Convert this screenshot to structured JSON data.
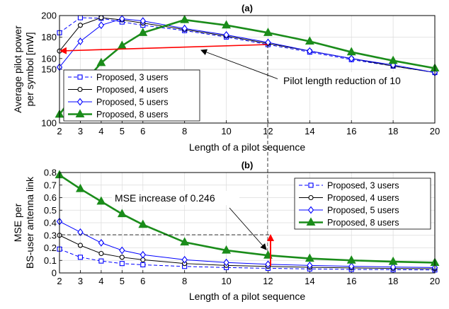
{
  "chart_data": [
    {
      "type": "line",
      "title": "(a)",
      "xlabel": "Length of a pilot sequence",
      "ylabel_lines": [
        "Average pilot power",
        "per symbol [mW]"
      ],
      "xlim": [
        2,
        20
      ],
      "ylim": [
        100,
        200
      ],
      "grid": true,
      "legend_position": "bottom-left",
      "x_ticks": [
        2,
        3,
        4,
        5,
        6,
        8,
        10,
        12,
        14,
        16,
        18,
        20
      ],
      "y_ticks": [
        100,
        150,
        160,
        180,
        200
      ],
      "series": [
        {
          "name": "Proposed, 3 users",
          "color": "#0000ff",
          "marker": "square",
          "dash": true,
          "width": 1,
          "x": [
            2,
            3,
            4,
            5,
            6,
            8,
            10,
            12,
            14,
            16,
            18,
            20
          ],
          "y": [
            184,
            198,
            197.5,
            194,
            191,
            186,
            180,
            173,
            166,
            159,
            153,
            147
          ]
        },
        {
          "name": "Proposed, 4 users",
          "color": "#000000",
          "marker": "circle",
          "dash": false,
          "width": 1,
          "x": [
            2,
            3,
            4,
            5,
            6,
            8,
            10,
            12,
            14,
            16,
            18,
            20
          ],
          "y": [
            167,
            191,
            198,
            196,
            193,
            187,
            181,
            174,
            167,
            160,
            153,
            147
          ]
        },
        {
          "name": "Proposed, 5 users",
          "color": "#0000ff",
          "marker": "diamond",
          "dash": false,
          "width": 1,
          "x": [
            2,
            3,
            4,
            5,
            6,
            8,
            10,
            12,
            14,
            16,
            18,
            20
          ],
          "y": [
            152,
            176,
            191,
            197,
            195,
            188,
            182,
            175,
            167,
            160,
            154,
            147
          ]
        },
        {
          "name": "Proposed, 8 users",
          "color": "#1a8c1a",
          "marker": "triangle",
          "dash": false,
          "width": 2.6,
          "x": [
            2,
            3,
            4,
            5,
            6,
            8,
            10,
            12,
            14,
            16,
            18,
            20
          ],
          "y": [
            108,
            134,
            156,
            172,
            184,
            196,
            191,
            184,
            176,
            166,
            158,
            151
          ]
        }
      ],
      "annotations": [
        {
          "text": "Pilot length reduction of 10"
        }
      ]
    },
    {
      "type": "line",
      "title": "(b)",
      "xlabel": "Length of a pilot sequence",
      "ylabel_lines": [
        "MSE per",
        "BS-user antenna link"
      ],
      "xlim": [
        2,
        20
      ],
      "ylim": [
        0,
        0.8
      ],
      "grid": true,
      "legend_position": "top-right",
      "x_ticks": [
        2,
        3,
        4,
        5,
        6,
        8,
        10,
        12,
        14,
        16,
        18,
        20
      ],
      "y_ticks": [
        0,
        0.1,
        0.2,
        0.3,
        0.4,
        0.5,
        0.6,
        0.7,
        0.8
      ],
      "series": [
        {
          "name": "Proposed, 3 users",
          "color": "#0000ff",
          "marker": "square",
          "dash": true,
          "width": 1,
          "x": [
            2,
            3,
            4,
            5,
            6,
            8,
            10,
            12,
            14,
            16,
            18,
            20
          ],
          "y": [
            0.19,
            0.125,
            0.095,
            0.075,
            0.065,
            0.052,
            0.043,
            0.037,
            0.032,
            0.028,
            0.026,
            0.024
          ]
        },
        {
          "name": "Proposed, 4 users",
          "color": "#000000",
          "marker": "circle",
          "dash": false,
          "width": 1,
          "x": [
            2,
            3,
            4,
            5,
            6,
            8,
            10,
            12,
            14,
            16,
            18,
            20
          ],
          "y": [
            0.3,
            0.22,
            0.155,
            0.125,
            0.105,
            0.075,
            0.06,
            0.052,
            0.045,
            0.04,
            0.036,
            0.033
          ]
        },
        {
          "name": "Proposed, 5 users",
          "color": "#0000ff",
          "marker": "diamond",
          "dash": false,
          "width": 1,
          "x": [
            2,
            3,
            4,
            5,
            6,
            8,
            10,
            12,
            14,
            16,
            18,
            20
          ],
          "y": [
            0.41,
            0.325,
            0.24,
            0.18,
            0.145,
            0.105,
            0.083,
            0.069,
            0.06,
            0.053,
            0.047,
            0.043
          ]
        },
        {
          "name": "Proposed, 8 users",
          "color": "#1a8c1a",
          "marker": "triangle",
          "dash": false,
          "width": 2.6,
          "x": [
            2,
            3,
            4,
            5,
            6,
            8,
            10,
            12,
            14,
            16,
            18,
            20
          ],
          "y": [
            0.78,
            0.67,
            0.57,
            0.47,
            0.385,
            0.245,
            0.18,
            0.14,
            0.115,
            0.1,
            0.09,
            0.082
          ]
        }
      ],
      "annotations": [
        {
          "text": "MSE increase of 0.246"
        }
      ]
    }
  ]
}
